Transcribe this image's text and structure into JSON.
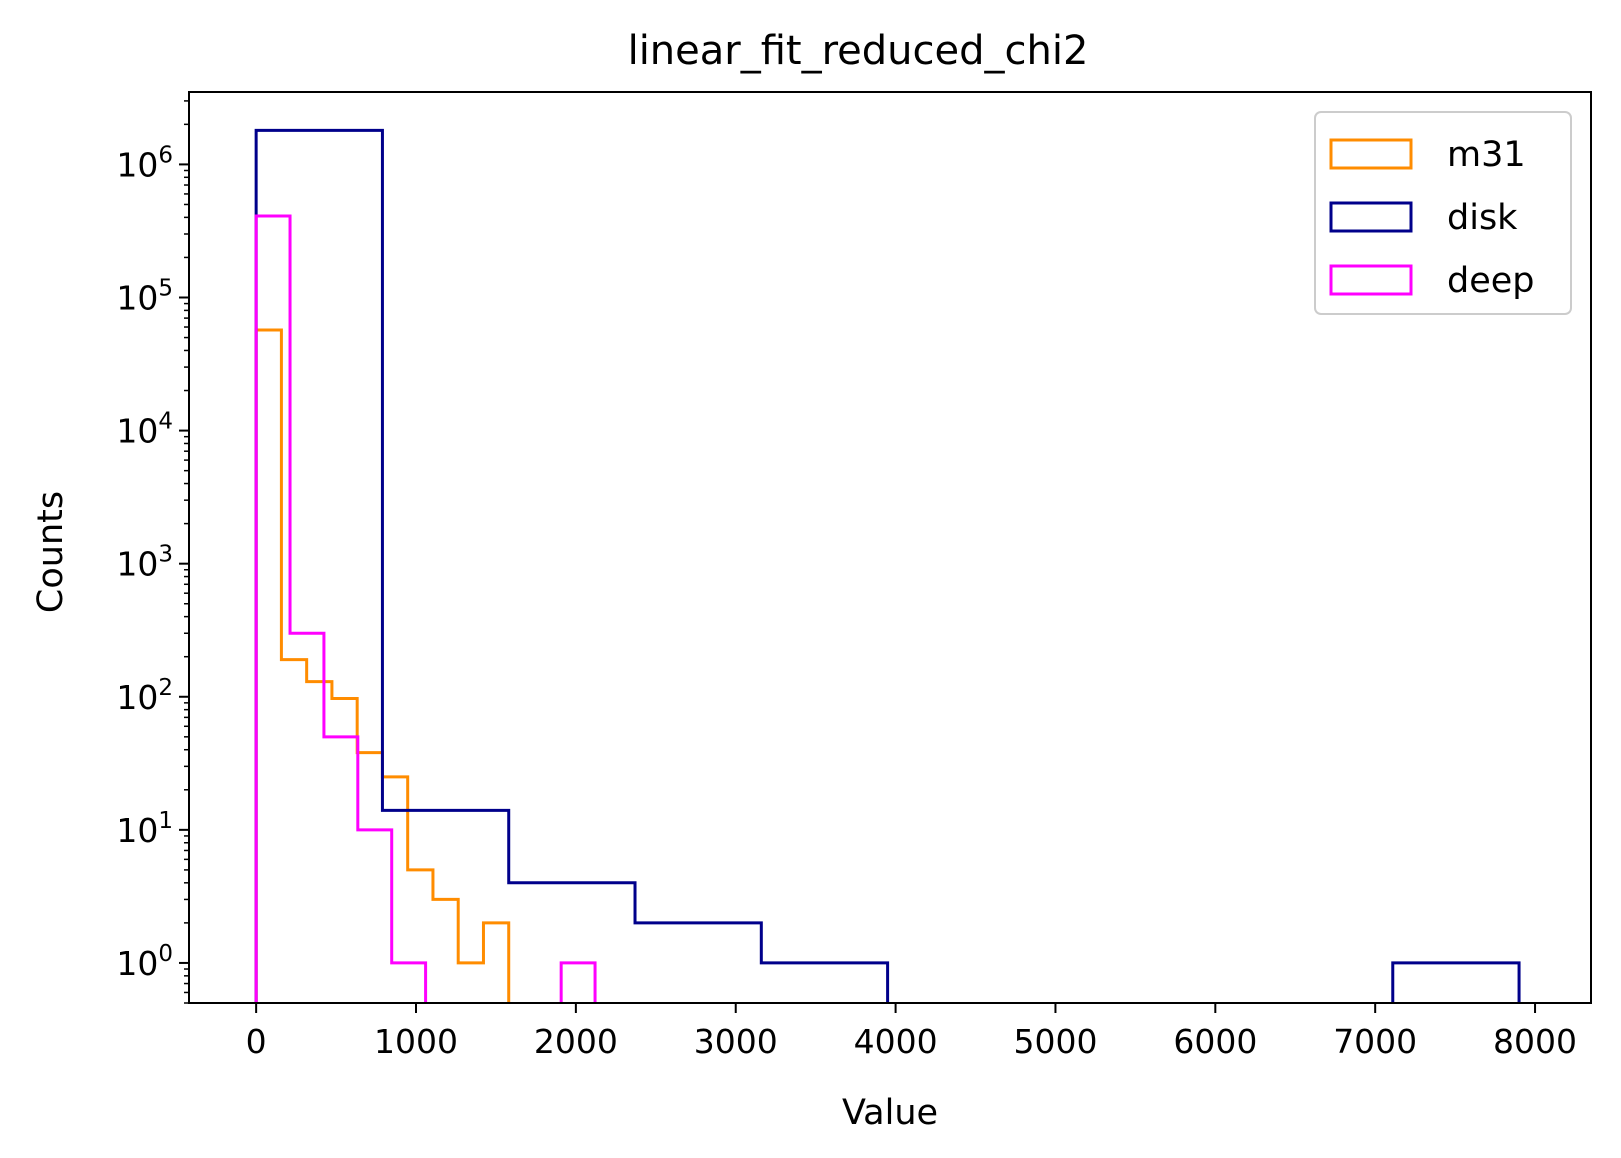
{
  "chart_data": {
    "type": "histogram",
    "title": "linear_fit_reduced_chi2",
    "xlabel": "Value",
    "ylabel": "Counts",
    "xlim": [
      -420,
      8350
    ],
    "ylim": [
      0.5,
      3500000
    ],
    "yscale": "log",
    "x_ticks": [
      0,
      1000,
      2000,
      3000,
      4000,
      5000,
      6000,
      7000,
      8000
    ],
    "x_tick_labels": [
      "0",
      "1000",
      "2000",
      "3000",
      "4000",
      "5000",
      "6000",
      "7000",
      "8000"
    ],
    "y_ticks": [
      1,
      10,
      100,
      1000,
      10000,
      100000,
      1000000
    ],
    "y_tick_exponents": [
      "0",
      "1",
      "2",
      "3",
      "4",
      "5",
      "6"
    ],
    "y_tick_base": "10",
    "grid": false,
    "legend_placement": "top-right",
    "histtype": "step",
    "series": [
      {
        "name": "m31",
        "color": "#ff8c00",
        "bin_edges": [
          0,
          158,
          316,
          474,
          632,
          790,
          948,
          1106,
          1264,
          1422,
          1580
        ],
        "counts": [
          57000,
          190,
          130,
          97,
          38,
          25,
          5,
          3,
          1,
          2
        ]
      },
      {
        "name": "disk",
        "color": "#00008b",
        "bin_edges": [
          0,
          790,
          1580,
          2370,
          3160,
          3950,
          4740,
          5530,
          6320,
          7110,
          7900
        ],
        "counts": [
          1800000,
          14,
          4,
          2,
          1,
          0,
          0,
          0,
          0,
          1
        ]
      },
      {
        "name": "deep",
        "color": "#ff00ff",
        "bin_edges": [
          0,
          212,
          424,
          636,
          848,
          1060,
          1272,
          1484,
          1696,
          1908,
          2120
        ],
        "counts": [
          410000,
          300,
          50,
          10,
          1,
          0,
          0,
          0,
          0,
          1
        ]
      }
    ]
  }
}
